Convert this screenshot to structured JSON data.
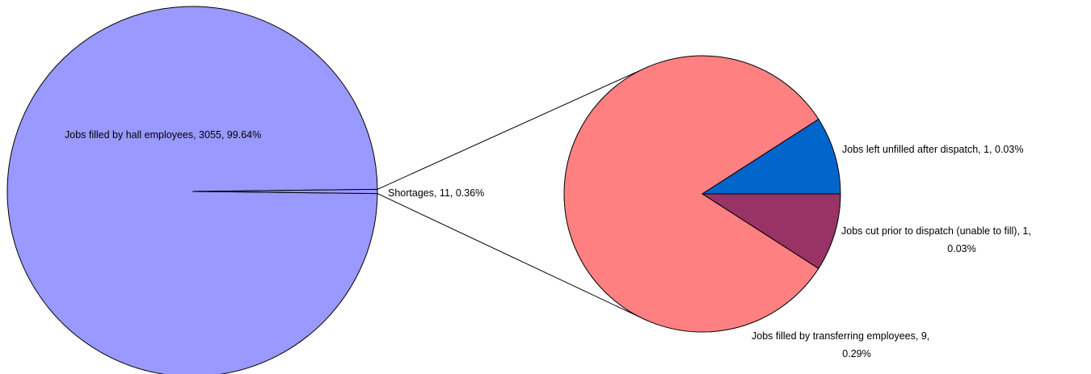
{
  "chart_data": {
    "type": "pie",
    "subtype": "pie-of-pie",
    "title": "",
    "primary": {
      "slices": [
        {
          "label": "Jobs filled by hall employees",
          "value": 3055,
          "percent": "99.64%",
          "color": "#9999ff"
        },
        {
          "label": "Shortages",
          "value": 11,
          "percent": "0.36%",
          "color": "#9999ff"
        }
      ]
    },
    "secondary": {
      "source": "Shortages",
      "slices": [
        {
          "label": "Jobs left unfilled after dispatch",
          "value": 1,
          "percent": "0.03%",
          "color": "#0066cc"
        },
        {
          "label": "Jobs cut prior to dispatch (unable to fill)",
          "value": 1,
          "percent": "0.03%",
          "color": "#993366"
        },
        {
          "label": "Jobs filled by transferring employees",
          "value": 9,
          "percent": "0.29%",
          "color": "#ff8080"
        }
      ]
    },
    "legend": "none",
    "data_labels": {
      "hall": [
        "Jobs filled by hall employees, 3055, 99.64%"
      ],
      "shortages": [
        "Shortages, 11, 0.36%"
      ],
      "unfilled": [
        "Jobs left unfilled after dispatch, 1, 0.03%"
      ],
      "cut": [
        "Jobs cut prior to dispatch (unable to fill), 1,",
        "0.03%"
      ],
      "transfer": [
        "Jobs filled by transferring employees, 9,",
        "0.29%"
      ]
    }
  }
}
